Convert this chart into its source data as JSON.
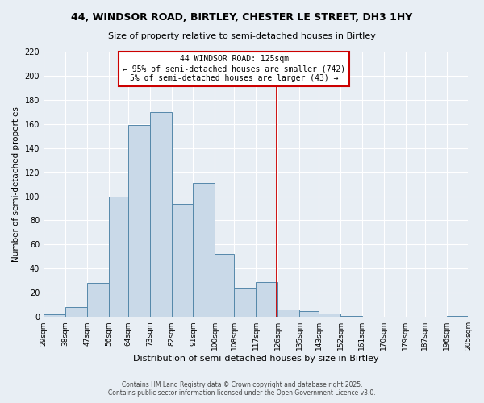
{
  "title_line1": "44, WINDSOR ROAD, BIRTLEY, CHESTER LE STREET, DH3 1HY",
  "title_line2": "Size of property relative to semi-detached houses in Birtley",
  "xlabel": "Distribution of semi-detached houses by size in Birtley",
  "ylabel": "Number of semi-detached properties",
  "bin_labels": [
    "29sqm",
    "38sqm",
    "47sqm",
    "56sqm",
    "64sqm",
    "73sqm",
    "82sqm",
    "91sqm",
    "100sqm",
    "108sqm",
    "117sqm",
    "126sqm",
    "135sqm",
    "143sqm",
    "152sqm",
    "161sqm",
    "170sqm",
    "179sqm",
    "187sqm",
    "196sqm",
    "205sqm"
  ],
  "bin_edges": [
    29,
    38,
    47,
    56,
    64,
    73,
    82,
    91,
    100,
    108,
    117,
    126,
    135,
    143,
    152,
    161,
    170,
    179,
    187,
    196,
    205
  ],
  "bar_values": [
    2,
    8,
    28,
    100,
    159,
    170,
    94,
    111,
    52,
    24,
    29,
    6,
    5,
    3,
    1,
    0,
    0,
    0,
    0,
    1
  ],
  "bar_color": "#c9d9e8",
  "bar_edge_color": "#5588aa",
  "vline_x": 125.5,
  "vline_color": "#cc0000",
  "annotation_title": "44 WINDSOR ROAD: 125sqm",
  "annotation_line2": "← 95% of semi-detached houses are smaller (742)",
  "annotation_line3": "5% of semi-detached houses are larger (43) →",
  "annotation_box_color": "#ffffff",
  "annotation_border_color": "#cc0000",
  "footer_line1": "Contains HM Land Registry data © Crown copyright and database right 2025.",
  "footer_line2": "Contains public sector information licensed under the Open Government Licence v3.0.",
  "background_color": "#e8eef4",
  "grid_color": "#ffffff",
  "ylim": [
    0,
    220
  ],
  "yticks": [
    0,
    20,
    40,
    60,
    80,
    100,
    120,
    140,
    160,
    180,
    200,
    220
  ]
}
